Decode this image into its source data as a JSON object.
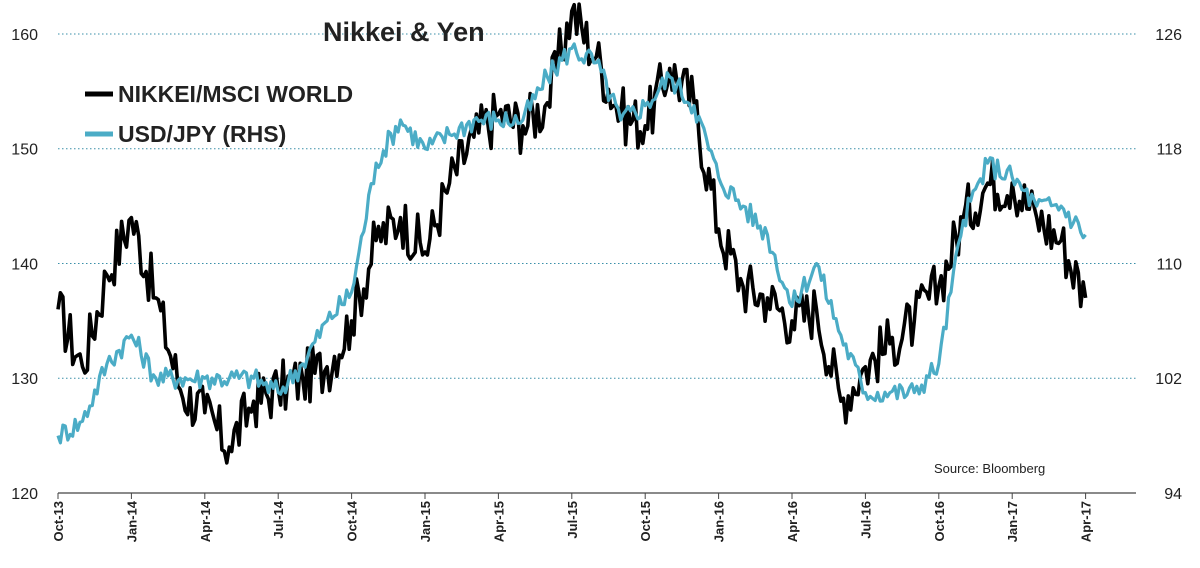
{
  "chart_data": {
    "type": "line",
    "title": "Nikkei & Yen",
    "source": "Source: Bloomberg",
    "x_ticks": [
      "Oct-13",
      "Jan-14",
      "Apr-14",
      "Jul-14",
      "Oct-14",
      "Jan-15",
      "Apr-15",
      "Jul-15",
      "Oct-15",
      "Jan-16",
      "Apr-16",
      "Jul-16",
      "Oct-16",
      "Jan-17",
      "Apr-17"
    ],
    "y_left": {
      "ticks": [
        "120",
        "130",
        "140",
        "150",
        "160"
      ],
      "range": [
        120,
        162
      ]
    },
    "y_right": {
      "ticks": [
        "94",
        "102",
        "110",
        "118",
        "126"
      ],
      "range": [
        94,
        127.6
      ]
    },
    "grid": "horizontal-dotted",
    "legend_position": "top-left",
    "colors": {
      "nikkei": "#000000",
      "usdjpy": "#4bacc6",
      "grid": "#3a8fa8"
    },
    "x": [
      "Oct-13",
      "Nov-13",
      "Dec-13",
      "Jan-14",
      "Feb-14",
      "Mar-14",
      "Apr-14",
      "May-14",
      "Jun-14",
      "Jul-14",
      "Aug-14",
      "Sep-14",
      "Oct-14",
      "Nov-14",
      "Dec-14",
      "Jan-15",
      "Feb-15",
      "Mar-15",
      "Apr-15",
      "May-15",
      "Jun-15",
      "Jul-15",
      "Aug-15",
      "Sep-15",
      "Oct-15",
      "Nov-15",
      "Dec-15",
      "Jan-16",
      "Feb-16",
      "Mar-16",
      "Apr-16",
      "May-16",
      "Jun-16",
      "Jul-16",
      "Aug-16",
      "Sep-16",
      "Oct-16",
      "Nov-16",
      "Dec-16",
      "Jan-17",
      "Feb-17",
      "Mar-17",
      "Apr-17"
    ],
    "series": [
      {
        "name": "NIKKEI/MSCI WORLD",
        "axis": "left",
        "values": [
          136,
          131,
          139,
          144,
          137,
          129,
          127,
          124,
          128,
          129,
          130,
          131,
          135,
          142,
          144,
          141,
          147,
          151,
          153,
          152,
          154,
          162,
          158,
          153,
          152,
          157,
          154,
          143,
          138,
          137,
          135,
          136,
          128,
          131,
          133,
          135,
          138,
          144,
          147,
          147,
          144,
          142,
          137
        ]
      },
      {
        "name": "USD/JPY (RHS)",
        "axis": "right",
        "values": [
          98,
          99,
          103,
          105,
          102,
          102,
          102,
          102,
          102,
          101,
          103,
          106,
          108,
          117,
          120,
          118,
          119,
          120,
          120,
          120,
          123,
          125,
          124,
          120,
          121,
          123,
          121,
          116,
          114,
          112,
          107,
          110,
          105,
          101,
          101,
          101,
          103,
          113,
          117,
          116,
          114,
          114,
          112
        ]
      }
    ]
  }
}
